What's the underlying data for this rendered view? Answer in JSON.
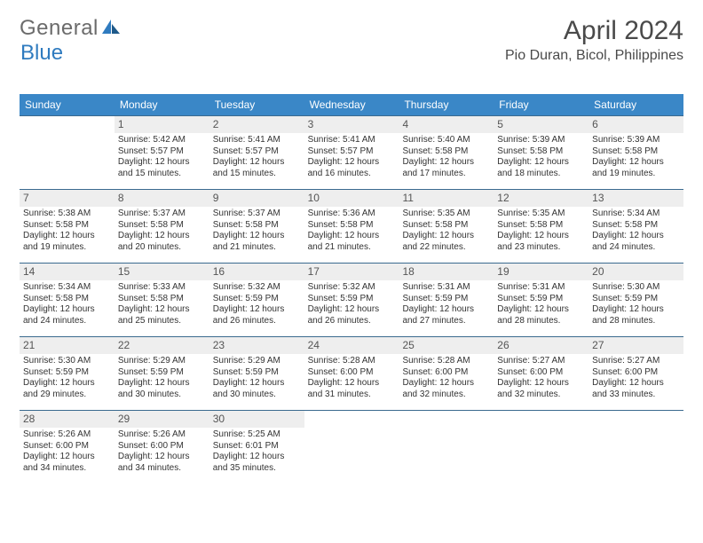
{
  "logo": {
    "text1": "General",
    "text2": "Blue"
  },
  "title": {
    "month": "April 2024",
    "location": "Pio Duran, Bicol, Philippines"
  },
  "colors": {
    "header_bg": "#3a87c7",
    "header_text": "#ffffff",
    "week_border": "#3a6a8f",
    "daynum_bg": "#eeeeee",
    "text": "#333333",
    "logo_gray": "#6b6b6b",
    "logo_blue": "#2f7bbf"
  },
  "font_sizes": {
    "title_month": 30,
    "title_loc": 16,
    "day_header": 12,
    "daynum": 12,
    "body": 10
  },
  "day_headers": [
    "Sunday",
    "Monday",
    "Tuesday",
    "Wednesday",
    "Thursday",
    "Friday",
    "Saturday"
  ],
  "weeks": [
    [
      {
        "num": "",
        "sunrise": "",
        "sunset": "",
        "daylight": ""
      },
      {
        "num": "1",
        "sunrise": "Sunrise: 5:42 AM",
        "sunset": "Sunset: 5:57 PM",
        "daylight": "Daylight: 12 hours and 15 minutes."
      },
      {
        "num": "2",
        "sunrise": "Sunrise: 5:41 AM",
        "sunset": "Sunset: 5:57 PM",
        "daylight": "Daylight: 12 hours and 15 minutes."
      },
      {
        "num": "3",
        "sunrise": "Sunrise: 5:41 AM",
        "sunset": "Sunset: 5:57 PM",
        "daylight": "Daylight: 12 hours and 16 minutes."
      },
      {
        "num": "4",
        "sunrise": "Sunrise: 5:40 AM",
        "sunset": "Sunset: 5:58 PM",
        "daylight": "Daylight: 12 hours and 17 minutes."
      },
      {
        "num": "5",
        "sunrise": "Sunrise: 5:39 AM",
        "sunset": "Sunset: 5:58 PM",
        "daylight": "Daylight: 12 hours and 18 minutes."
      },
      {
        "num": "6",
        "sunrise": "Sunrise: 5:39 AM",
        "sunset": "Sunset: 5:58 PM",
        "daylight": "Daylight: 12 hours and 19 minutes."
      }
    ],
    [
      {
        "num": "7",
        "sunrise": "Sunrise: 5:38 AM",
        "sunset": "Sunset: 5:58 PM",
        "daylight": "Daylight: 12 hours and 19 minutes."
      },
      {
        "num": "8",
        "sunrise": "Sunrise: 5:37 AM",
        "sunset": "Sunset: 5:58 PM",
        "daylight": "Daylight: 12 hours and 20 minutes."
      },
      {
        "num": "9",
        "sunrise": "Sunrise: 5:37 AM",
        "sunset": "Sunset: 5:58 PM",
        "daylight": "Daylight: 12 hours and 21 minutes."
      },
      {
        "num": "10",
        "sunrise": "Sunrise: 5:36 AM",
        "sunset": "Sunset: 5:58 PM",
        "daylight": "Daylight: 12 hours and 21 minutes."
      },
      {
        "num": "11",
        "sunrise": "Sunrise: 5:35 AM",
        "sunset": "Sunset: 5:58 PM",
        "daylight": "Daylight: 12 hours and 22 minutes."
      },
      {
        "num": "12",
        "sunrise": "Sunrise: 5:35 AM",
        "sunset": "Sunset: 5:58 PM",
        "daylight": "Daylight: 12 hours and 23 minutes."
      },
      {
        "num": "13",
        "sunrise": "Sunrise: 5:34 AM",
        "sunset": "Sunset: 5:58 PM",
        "daylight": "Daylight: 12 hours and 24 minutes."
      }
    ],
    [
      {
        "num": "14",
        "sunrise": "Sunrise: 5:34 AM",
        "sunset": "Sunset: 5:58 PM",
        "daylight": "Daylight: 12 hours and 24 minutes."
      },
      {
        "num": "15",
        "sunrise": "Sunrise: 5:33 AM",
        "sunset": "Sunset: 5:58 PM",
        "daylight": "Daylight: 12 hours and 25 minutes."
      },
      {
        "num": "16",
        "sunrise": "Sunrise: 5:32 AM",
        "sunset": "Sunset: 5:59 PM",
        "daylight": "Daylight: 12 hours and 26 minutes."
      },
      {
        "num": "17",
        "sunrise": "Sunrise: 5:32 AM",
        "sunset": "Sunset: 5:59 PM",
        "daylight": "Daylight: 12 hours and 26 minutes."
      },
      {
        "num": "18",
        "sunrise": "Sunrise: 5:31 AM",
        "sunset": "Sunset: 5:59 PM",
        "daylight": "Daylight: 12 hours and 27 minutes."
      },
      {
        "num": "19",
        "sunrise": "Sunrise: 5:31 AM",
        "sunset": "Sunset: 5:59 PM",
        "daylight": "Daylight: 12 hours and 28 minutes."
      },
      {
        "num": "20",
        "sunrise": "Sunrise: 5:30 AM",
        "sunset": "Sunset: 5:59 PM",
        "daylight": "Daylight: 12 hours and 28 minutes."
      }
    ],
    [
      {
        "num": "21",
        "sunrise": "Sunrise: 5:30 AM",
        "sunset": "Sunset: 5:59 PM",
        "daylight": "Daylight: 12 hours and 29 minutes."
      },
      {
        "num": "22",
        "sunrise": "Sunrise: 5:29 AM",
        "sunset": "Sunset: 5:59 PM",
        "daylight": "Daylight: 12 hours and 30 minutes."
      },
      {
        "num": "23",
        "sunrise": "Sunrise: 5:29 AM",
        "sunset": "Sunset: 5:59 PM",
        "daylight": "Daylight: 12 hours and 30 minutes."
      },
      {
        "num": "24",
        "sunrise": "Sunrise: 5:28 AM",
        "sunset": "Sunset: 6:00 PM",
        "daylight": "Daylight: 12 hours and 31 minutes."
      },
      {
        "num": "25",
        "sunrise": "Sunrise: 5:28 AM",
        "sunset": "Sunset: 6:00 PM",
        "daylight": "Daylight: 12 hours and 32 minutes."
      },
      {
        "num": "26",
        "sunrise": "Sunrise: 5:27 AM",
        "sunset": "Sunset: 6:00 PM",
        "daylight": "Daylight: 12 hours and 32 minutes."
      },
      {
        "num": "27",
        "sunrise": "Sunrise: 5:27 AM",
        "sunset": "Sunset: 6:00 PM",
        "daylight": "Daylight: 12 hours and 33 minutes."
      }
    ],
    [
      {
        "num": "28",
        "sunrise": "Sunrise: 5:26 AM",
        "sunset": "Sunset: 6:00 PM",
        "daylight": "Daylight: 12 hours and 34 minutes."
      },
      {
        "num": "29",
        "sunrise": "Sunrise: 5:26 AM",
        "sunset": "Sunset: 6:00 PM",
        "daylight": "Daylight: 12 hours and 34 minutes."
      },
      {
        "num": "30",
        "sunrise": "Sunrise: 5:25 AM",
        "sunset": "Sunset: 6:01 PM",
        "daylight": "Daylight: 12 hours and 35 minutes."
      },
      {
        "num": "",
        "sunrise": "",
        "sunset": "",
        "daylight": ""
      },
      {
        "num": "",
        "sunrise": "",
        "sunset": "",
        "daylight": ""
      },
      {
        "num": "",
        "sunrise": "",
        "sunset": "",
        "daylight": ""
      },
      {
        "num": "",
        "sunrise": "",
        "sunset": "",
        "daylight": ""
      }
    ]
  ]
}
